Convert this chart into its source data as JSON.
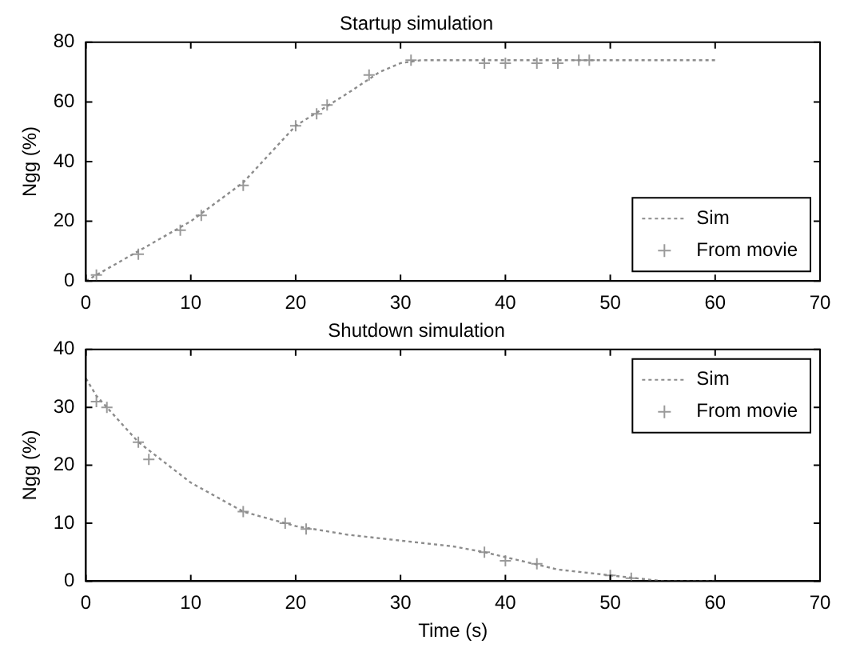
{
  "chart_data": [
    {
      "type": "line",
      "title": "Startup simulation",
      "ylabel": "Ngg (%)",
      "xlim": [
        0,
        70
      ],
      "xticks": [
        0,
        10,
        20,
        30,
        40,
        50,
        60,
        70
      ],
      "ylim": [
        0,
        80
      ],
      "yticks": [
        0,
        20,
        40,
        60,
        80
      ],
      "grid": false,
      "legend": "bottom right",
      "series": [
        {
          "name": "Sim",
          "color": "#8c8c8c",
          "line_style": "dotted",
          "marker": "none",
          "x": [
            0,
            5,
            10,
            15,
            20,
            25,
            28,
            30,
            32,
            35,
            40,
            50,
            60
          ],
          "values": [
            0,
            10,
            20,
            33,
            52,
            63,
            70,
            73,
            74,
            74,
            74,
            74,
            74
          ]
        },
        {
          "name": "From movie",
          "type": "scatter",
          "color": "#9a9a9a",
          "marker": "cross",
          "x": [
            1,
            5,
            9,
            11,
            15,
            20,
            22,
            23,
            27,
            31,
            38,
            40,
            43,
            45,
            47,
            48
          ],
          "values": [
            2,
            9,
            17,
            22,
            32,
            52,
            56,
            59,
            69,
            74,
            73,
            73,
            73,
            73,
            74,
            74
          ]
        }
      ]
    },
    {
      "type": "line",
      "title": "Shutdown simulation",
      "xlabel": "Time (s)",
      "ylabel": "Ngg (%)",
      "xlim": [
        0,
        70
      ],
      "xticks": [
        0,
        10,
        20,
        30,
        40,
        50,
        60,
        70
      ],
      "ylim": [
        0,
        40
      ],
      "yticks": [
        0,
        10,
        20,
        30,
        40
      ],
      "grid": false,
      "legend": "top right",
      "series": [
        {
          "name": "Sim",
          "color": "#8c8c8c",
          "line_style": "dotted",
          "marker": "none",
          "x": [
            0,
            1,
            5,
            10,
            15,
            20,
            25,
            30,
            35,
            38,
            45,
            50,
            55,
            60
          ],
          "values": [
            35,
            32,
            24,
            17,
            12,
            9.5,
            8,
            7,
            6,
            5,
            2,
            1,
            0,
            0
          ]
        },
        {
          "name": "From movie",
          "type": "scatter",
          "color": "#9a9a9a",
          "marker": "cross",
          "x": [
            1,
            2,
            5,
            6,
            15,
            19,
            21,
            38,
            40,
            43,
            50,
            52
          ],
          "values": [
            31,
            30,
            24,
            21,
            12,
            10,
            9,
            5,
            3.5,
            3,
            1,
            0.5
          ]
        }
      ]
    }
  ]
}
